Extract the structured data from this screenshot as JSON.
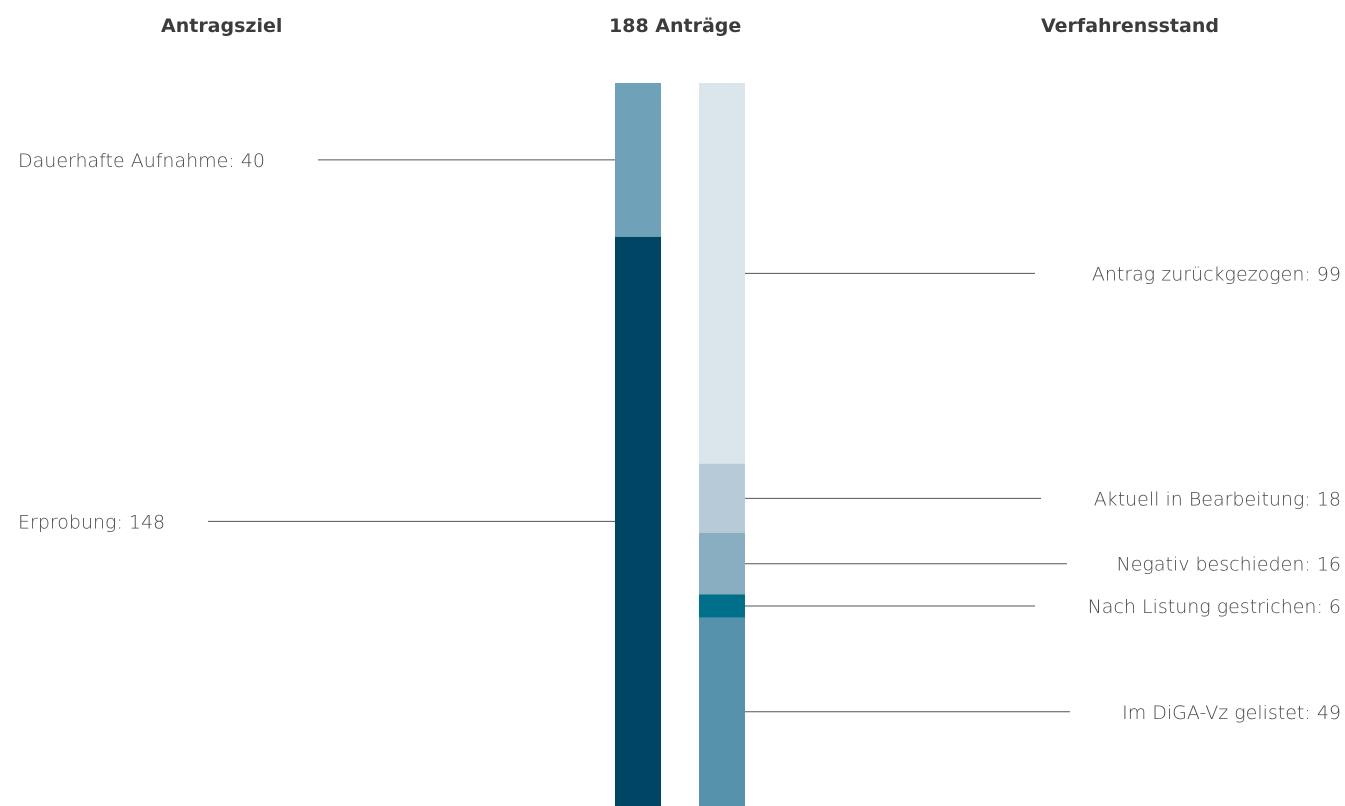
{
  "headers": {
    "left": "Antragsziel",
    "center": "188 Anträge",
    "right": "Verfahrensstand"
  },
  "chart_data": {
    "type": "stacked-bar",
    "total": 188,
    "ylim": [
      0,
      188
    ],
    "series": [
      {
        "name": "Antragsziel",
        "label_side": "left",
        "segments": [
          {
            "label": "Dauerhafte Aufnahme",
            "value": 40,
            "text": "Dauerhafte Aufnahme: 40",
            "color": "#6fa2b8"
          },
          {
            "label": "Erprobung",
            "value": 148,
            "text": "Erprobung: 148",
            "color": "#004564"
          }
        ]
      },
      {
        "name": "Verfahrensstand",
        "label_side": "right",
        "segments": [
          {
            "label": "Antrag zurückgezogen",
            "value": 99,
            "text": "Antrag zurückgezogen: 99",
            "color": "#dbe5ec"
          },
          {
            "label": "Aktuell in Bearbeitung",
            "value": 18,
            "text": "Aktuell in Bearbeitung: 18",
            "color": "#b6cad8"
          },
          {
            "label": "Negativ beschieden",
            "value": 16,
            "text": "Negativ beschieden: 16",
            "color": "#89adc1"
          },
          {
            "label": "Nach Listung gestrichen",
            "value": 6,
            "text": "Nach Listung gestrichen: 6",
            "color": "#00708a"
          },
          {
            "label": "Im DiGA-Vz gelistet",
            "value": 49,
            "text": "Im DiGA-Vz gelistet: 49",
            "color": "#5692ab"
          }
        ]
      }
    ],
    "leader_line_color": "#555555"
  }
}
